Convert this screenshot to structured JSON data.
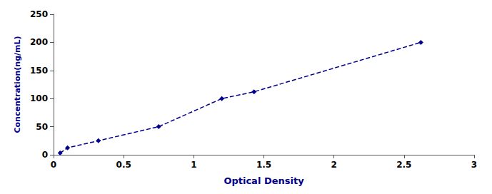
{
  "chart_data": {
    "type": "line",
    "x": [
      0.047,
      0.1,
      0.32,
      0.75,
      1.2,
      1.43,
      2.62
    ],
    "values": [
      3.125,
      12.5,
      25,
      50,
      100,
      112,
      200
    ],
    "color": "#00008B",
    "marker": "diamond",
    "line_style": "dashed",
    "xlabel": "Optical Density",
    "ylabel": "Concentration(ng/mL)",
    "xlim": [
      0,
      3
    ],
    "ylim": [
      0,
      250
    ],
    "xticks": [
      0,
      0.5,
      1,
      1.5,
      2,
      2.5,
      3
    ],
    "yticks": [
      0,
      50,
      100,
      150,
      200,
      250
    ],
    "grid": false
  }
}
